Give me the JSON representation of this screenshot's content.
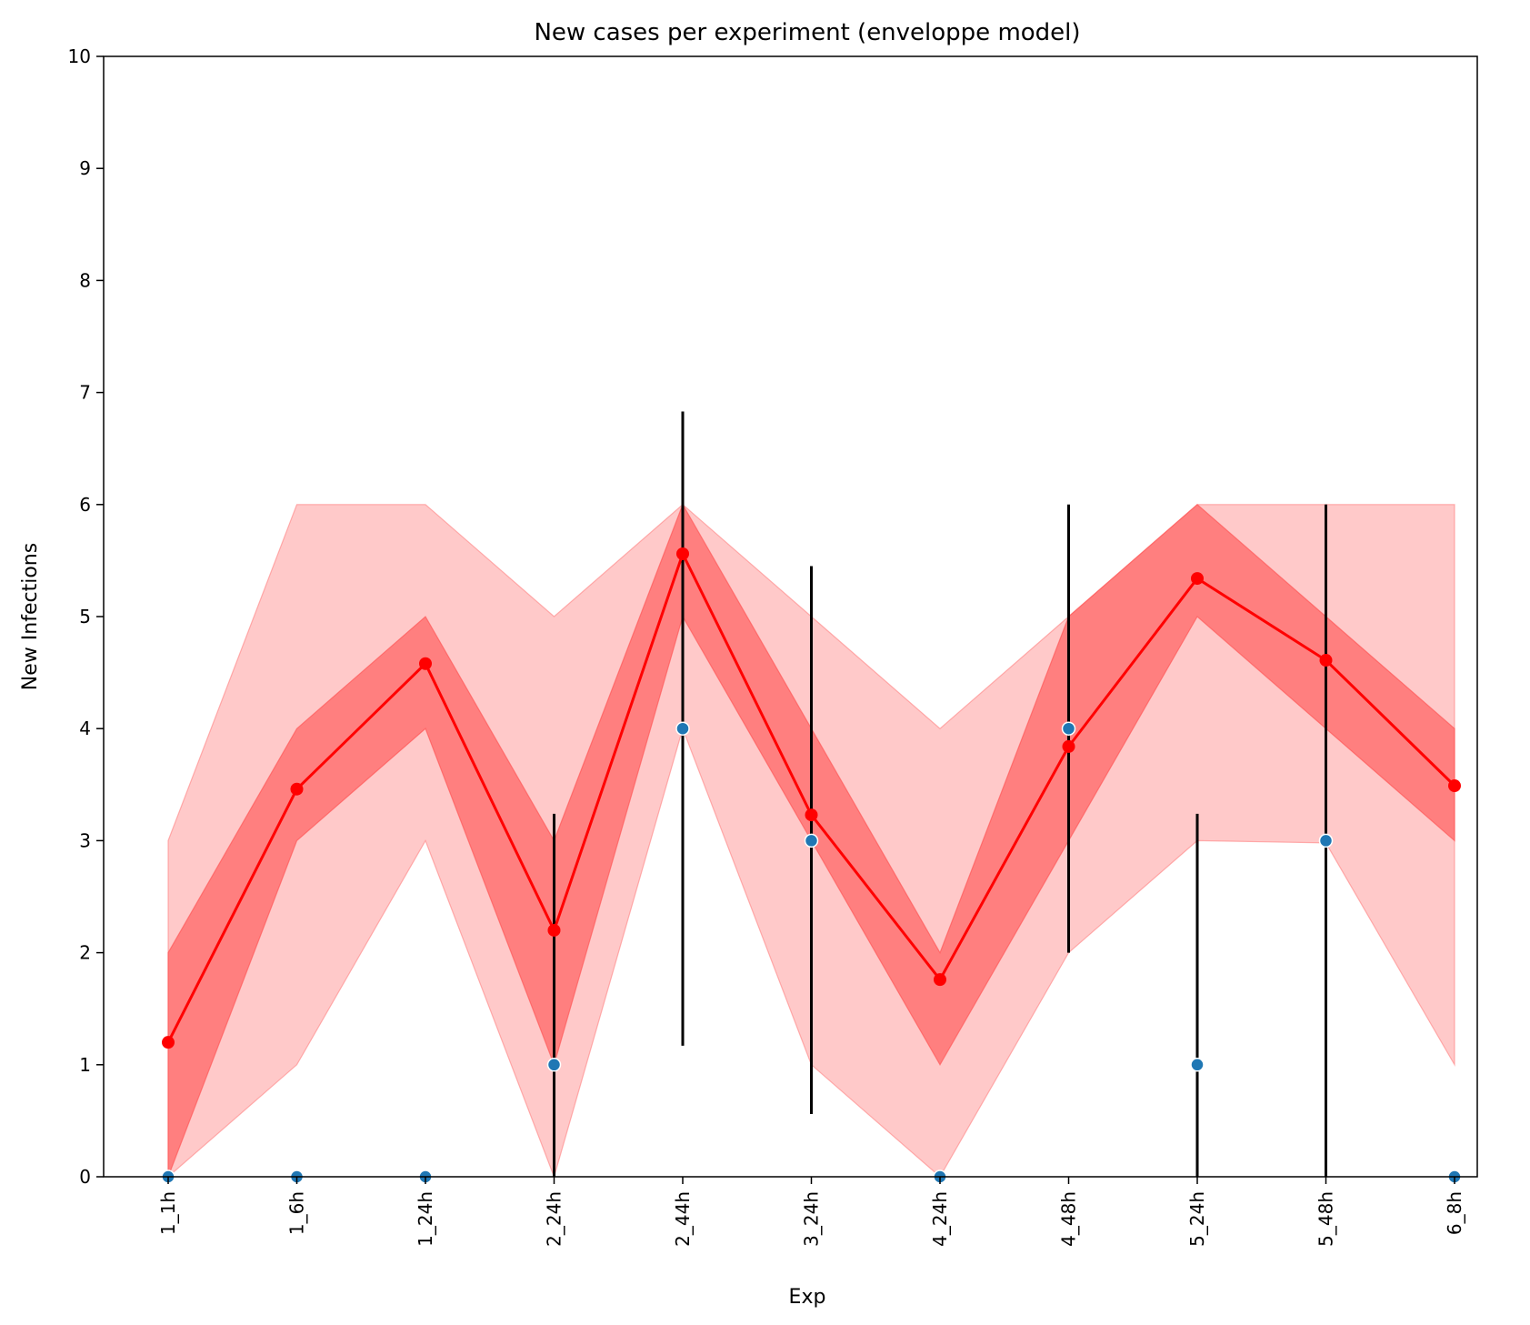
{
  "chart_data": {
    "type": "line",
    "title": "New cases per experiment (enveloppe model)",
    "xlabel": "Exp",
    "ylabel": "New Infections",
    "ylim": [
      0,
      10
    ],
    "yticks": [
      "0",
      "1",
      "2",
      "3",
      "4",
      "5",
      "6",
      "7",
      "8",
      "9",
      "10"
    ],
    "grid": false,
    "categories": [
      "1_1h",
      "1_6h",
      "1_24h",
      "2_24h",
      "2_44h",
      "3_24h",
      "4_24h",
      "4_48h",
      "5_24h",
      "5_48h",
      "6_8h"
    ],
    "model_mean": [
      1.2,
      3.46,
      4.58,
      2.2,
      5.56,
      3.23,
      1.76,
      3.84,
      5.34,
      4.61,
      3.49
    ],
    "inner_band": {
      "lower": [
        0,
        3,
        4,
        1,
        5,
        3,
        1,
        3,
        5,
        4,
        3
      ],
      "upper": [
        2,
        4,
        5,
        3,
        6,
        4,
        2,
        5,
        6,
        5,
        4
      ]
    },
    "outer_band": {
      "lower": [
        0,
        1,
        3,
        0,
        4,
        1,
        0,
        2,
        3,
        2.98,
        1
      ],
      "upper": [
        3,
        6,
        6,
        5,
        6,
        5,
        4,
        5,
        6,
        6,
        6
      ]
    },
    "observed": [
      0,
      0,
      0,
      1,
      4,
      3,
      0,
      4,
      1,
      3,
      0
    ],
    "error_bars": [
      null,
      null,
      null,
      [
        0,
        3.24
      ],
      [
        1.17,
        6.83
      ],
      [
        0.56,
        5.45
      ],
      null,
      [
        2,
        6
      ],
      [
        0,
        3.24
      ],
      [
        0,
        6
      ],
      null
    ],
    "colors": {
      "mean": "#ff0000",
      "inner_band": "#ff7f7f",
      "outer_band": "#ffc9c9",
      "band_edge": "#ff8080",
      "observed": "#1f77b4",
      "error_bar": "#000000"
    }
  }
}
